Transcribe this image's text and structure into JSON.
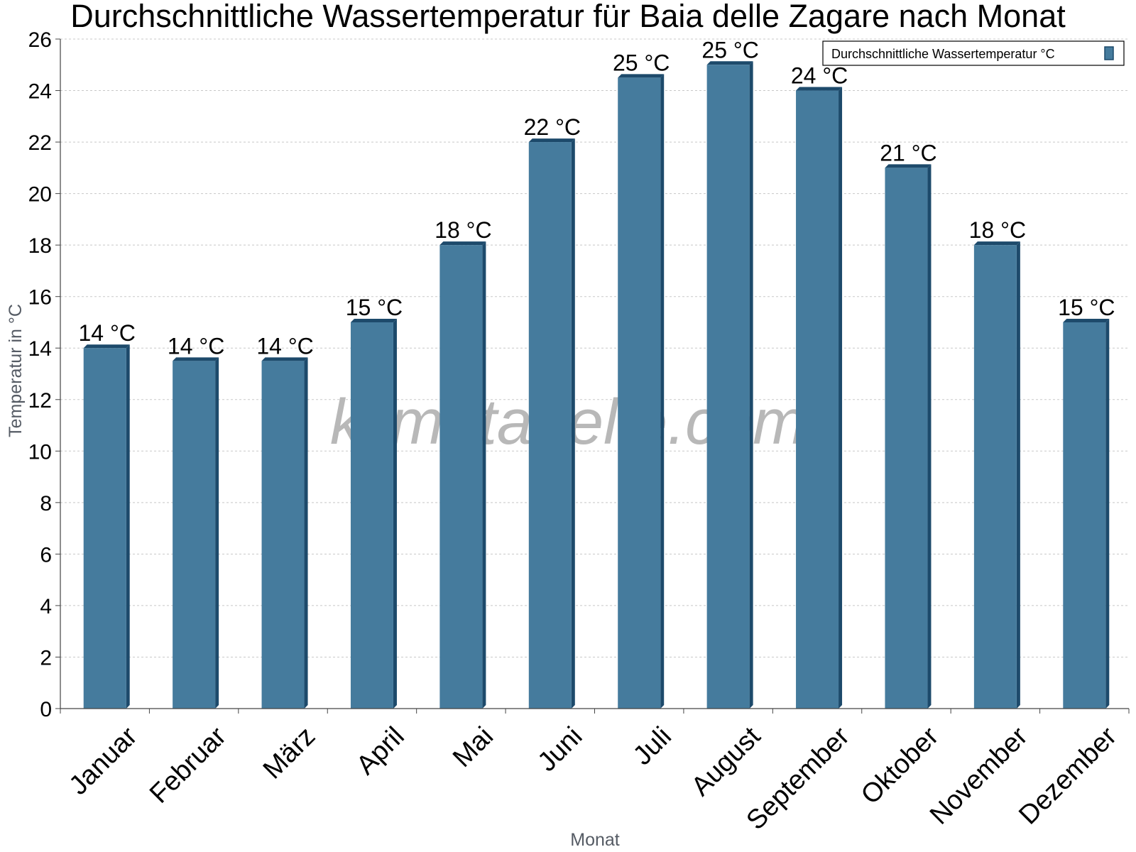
{
  "chart_data": {
    "type": "bar",
    "title": "Durchschnittliche Wassertemperatur für Baia delle Zagare nach Monat",
    "xlabel": "Monat",
    "ylabel": "Temperatur in °C",
    "ylim": [
      0,
      26
    ],
    "yticks": [
      0,
      2,
      4,
      6,
      8,
      10,
      12,
      14,
      16,
      18,
      20,
      22,
      24,
      26
    ],
    "categories": [
      "Januar",
      "Februar",
      "März",
      "April",
      "Mai",
      "Juni",
      "Juli",
      "August",
      "September",
      "Oktober",
      "November",
      "Dezember"
    ],
    "series": [
      {
        "name": "Durchschnittliche Wassertemperatur °C",
        "values": [
          14,
          13.5,
          13.5,
          15,
          18,
          22,
          24.5,
          25,
          24,
          21,
          18,
          15
        ],
        "labels": [
          "14 °C",
          "14 °C",
          "14 °C",
          "15 °C",
          "18 °C",
          "22 °C",
          "25 °C",
          "25 °C",
          "24 °C",
          "21 °C",
          "18 °C",
          "15 °C"
        ],
        "color": "#457b9d",
        "edge_color": "#1d4a6b"
      }
    ],
    "grid": true,
    "legend_position": "top-right",
    "watermark": "klimatabelle.com"
  }
}
